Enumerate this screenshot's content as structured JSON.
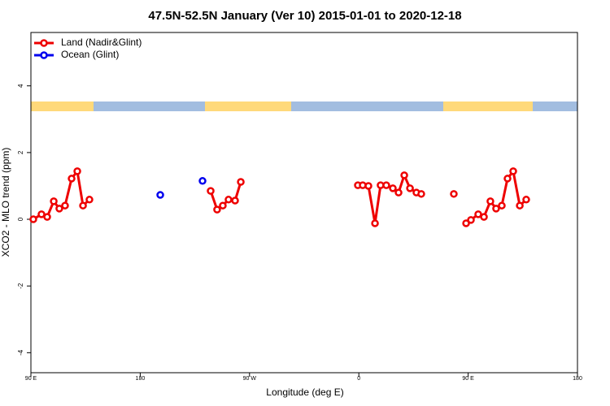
{
  "chart_data": {
    "type": "line",
    "title": "47.5N-52.5N January (Ver 10)   2015-01-01 to 2020-12-18",
    "xlabel": "Longitude (deg E)",
    "ylabel": "XCO2 - MLO trend (ppm)",
    "xlim": [
      90,
      540
    ],
    "ylim": [
      -4.6,
      5.6
    ],
    "xticks": [
      {
        "value": 90,
        "label": "90 E"
      },
      180,
      {
        "value": 270,
        "label": "90 W"
      },
      {
        "value": 360,
        "label": "0"
      },
      {
        "value": 450,
        "label": "90 E"
      },
      {
        "value": 540,
        "label": "180"
      }
    ],
    "yticks": [
      -4,
      -2,
      0,
      2,
      4
    ],
    "legend": "top-left",
    "series": [
      {
        "name": "Land (Nadir&Glint)",
        "color": "#ee0000",
        "lines": true,
        "x": [
          92,
          98.7,
          103.4,
          108.8,
          113.4,
          118.1,
          123.5,
          128.2,
          132.9,
          138.2,
          null,
          238,
          243.3,
          248,
          252.7,
          258.1,
          262.8,
          null,
          359.2,
          363.2,
          367.9,
          373.3,
          377.9,
          382.6,
          388,
          392.7,
          397.4,
          402.1,
          407.4,
          411.4,
          null,
          438.2,
          null,
          448.3,
          452.3,
          458.3,
          463,
          468.3,
          473,
          477.7,
          482.4,
          487.1,
          492.5,
          497.8
        ],
        "values": [
          0,
          0.15,
          0.07,
          0.54,
          0.32,
          0.41,
          1.22,
          1.44,
          0.41,
          0.59,
          null,
          0.85,
          0.29,
          0.41,
          0.59,
          0.56,
          1.12,
          null,
          1.02,
          1.02,
          1.0,
          -0.12,
          1.02,
          1.02,
          0.93,
          0.8,
          1.32,
          0.93,
          0.8,
          0.76,
          null,
          0.76,
          null,
          -0.12,
          -0.02,
          0.15,
          0.07,
          0.54,
          0.32,
          0.41,
          1.22,
          1.44,
          0.41,
          0.59
        ]
      },
      {
        "name": "Ocean (Glint)",
        "color": "#0000ee",
        "lines": false,
        "x": [
          196.5,
          231.3
        ],
        "values": [
          0.73,
          1.15
        ]
      }
    ]
  }
}
